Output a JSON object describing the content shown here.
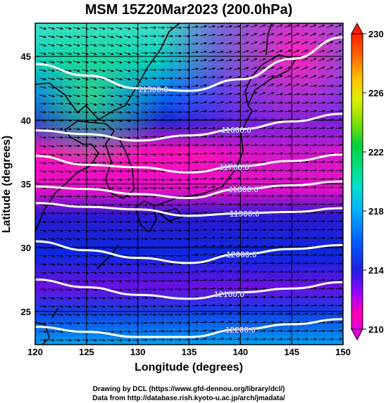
{
  "title": "MSM 15Z20Mar2023 (200.0hPa)",
  "x_axis": {
    "label": "Longitude (degrees)",
    "min": 120,
    "max": 150,
    "ticks": [
      "120",
      "125",
      "130",
      "135",
      "140",
      "145",
      "150"
    ],
    "tick_values": [
      120,
      125,
      130,
      135,
      140,
      145,
      150
    ]
  },
  "y_axis": {
    "label": "Latitude  (degrees)",
    "min": 22.4,
    "max": 47.6,
    "ticks": [
      "25",
      "30",
      "35",
      "40",
      "45"
    ],
    "tick_values": [
      25,
      30,
      35,
      40,
      45
    ]
  },
  "colorbar": {
    "min": 210,
    "max": 230,
    "ticks": [
      "210",
      "214",
      "218",
      "222",
      "226",
      "230"
    ],
    "tick_values": [
      210,
      214,
      218,
      222,
      226,
      230
    ]
  },
  "contours": {
    "color": "#ffffff",
    "lines": [
      {
        "label": "11500.0",
        "points": [
          [
            120,
            44.4
          ],
          [
            125,
            43.5
          ],
          [
            130,
            42.5
          ],
          [
            135,
            42.3
          ],
          [
            140,
            43.2
          ],
          [
            145,
            44.8
          ],
          [
            150,
            46.5
          ]
        ],
        "label_lon": 131.5
      },
      {
        "label": "11600.0",
        "points": [
          [
            120,
            39.2
          ],
          [
            125,
            38.9
          ],
          [
            130,
            38.4
          ],
          [
            135,
            38.8
          ],
          [
            140,
            39.3
          ],
          [
            145,
            39.9
          ],
          [
            150,
            40.5
          ]
        ],
        "label_lon": 139.6
      },
      {
        "label": "11700.0",
        "points": [
          [
            120,
            37.2
          ],
          [
            125,
            36.5
          ],
          [
            130,
            36.3
          ],
          [
            135,
            35.9
          ],
          [
            140,
            36.4
          ],
          [
            145,
            36.8
          ],
          [
            150,
            37.3
          ]
        ],
        "label_lon": 139.4
      },
      {
        "label": "11800.0",
        "points": [
          [
            120,
            34.8
          ],
          [
            125,
            34.6
          ],
          [
            130,
            34.2
          ],
          [
            135,
            33.9
          ],
          [
            140,
            34.6
          ],
          [
            145,
            34.9
          ],
          [
            150,
            35.2
          ]
        ],
        "label_lon": 140.3
      },
      {
        "label": "11900.0",
        "points": [
          [
            120,
            33.5
          ],
          [
            125,
            33.2
          ],
          [
            130,
            33.0
          ],
          [
            135,
            32.5
          ],
          [
            140,
            32.7
          ],
          [
            145,
            32.8
          ],
          [
            150,
            33.1
          ]
        ],
        "label_lon": 140.4
      },
      {
        "label": "12000.0",
        "points": [
          [
            120,
            30.5
          ],
          [
            125,
            29.8
          ],
          [
            130,
            29.2
          ],
          [
            135,
            28.8
          ],
          [
            140,
            29.5
          ],
          [
            145,
            29.9
          ],
          [
            150,
            30.2
          ]
        ],
        "label_lon": 140.1
      },
      {
        "label": "12100.0",
        "points": [
          [
            120,
            27.5
          ],
          [
            125,
            26.9
          ],
          [
            130,
            26.3
          ],
          [
            135,
            26.0
          ],
          [
            140,
            26.5
          ],
          [
            145,
            26.8
          ],
          [
            150,
            27.3
          ]
        ],
        "label_lon": 138.9
      },
      {
        "label": "12200.0",
        "points": [
          [
            120,
            23.8
          ],
          [
            125,
            23.4
          ],
          [
            130,
            23.0
          ],
          [
            135,
            23.0
          ],
          [
            140,
            23.6
          ],
          [
            145,
            24.0
          ],
          [
            150,
            24.4
          ]
        ],
        "label_lon": 140.0
      }
    ]
  },
  "footer": {
    "line1": "Drawing by DCL (https://www.gfd-dennou.org/library/dcl/)",
    "line2": "Data from http://database.rish.kyoto-u.ac.jp/arch/jmadata/"
  }
}
